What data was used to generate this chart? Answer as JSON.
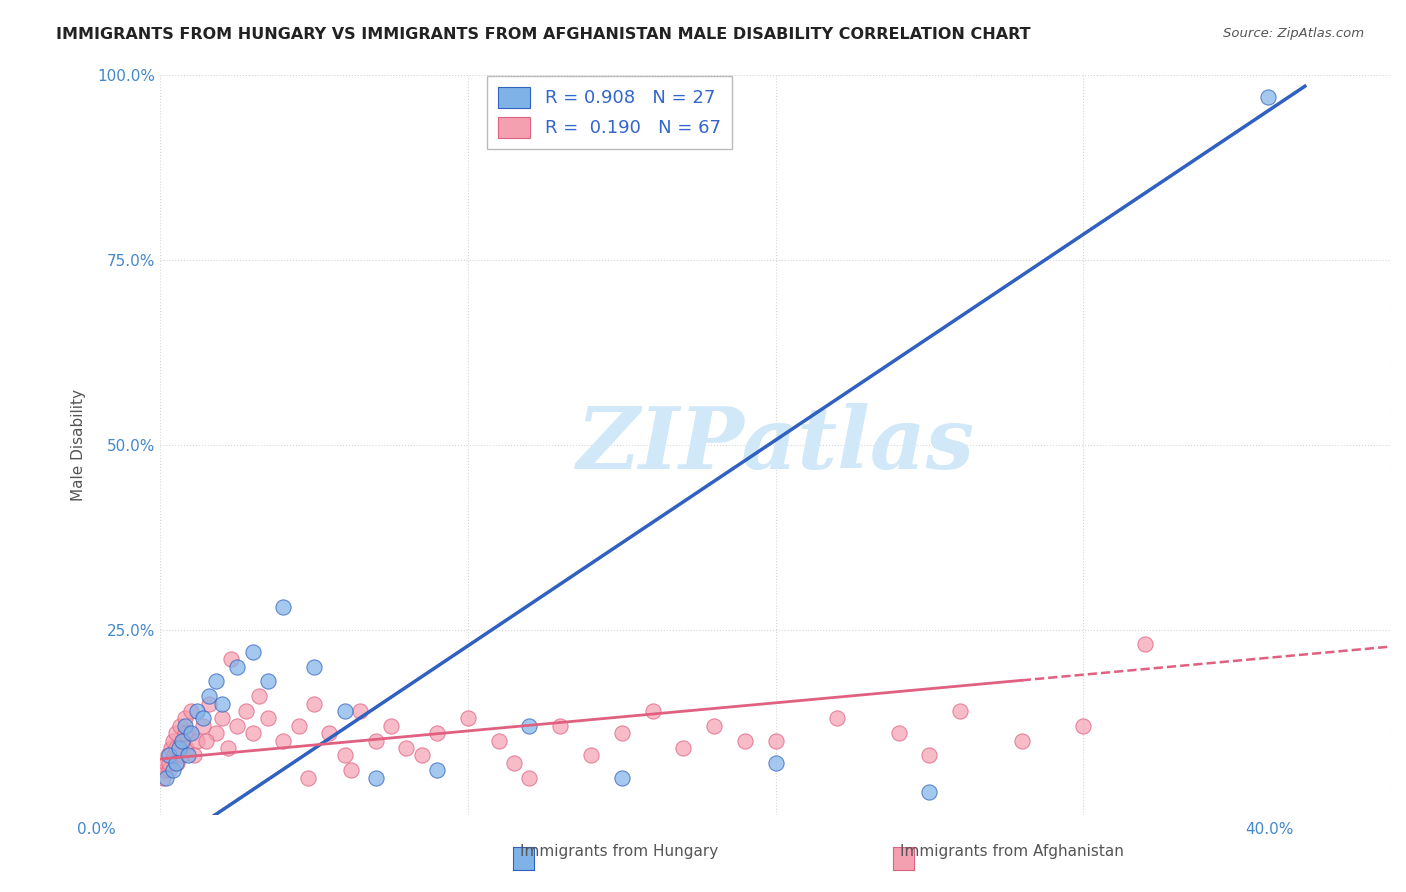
{
  "title": "IMMIGRANTS FROM HUNGARY VS IMMIGRANTS FROM AFGHANISTAN MALE DISABILITY CORRELATION CHART",
  "source": "Source: ZipAtlas.com",
  "ylabel": "Male Disability",
  "x_min": 0.0,
  "x_max": 40.0,
  "y_min": 0.0,
  "y_max": 100.0,
  "yticks": [
    0,
    25,
    50,
    75,
    100
  ],
  "ytick_labels": [
    "",
    "25.0%",
    "50.0%",
    "75.0%",
    "100.0%"
  ],
  "xticks": [
    0,
    10,
    20,
    30,
    40
  ],
  "hungary_R": 0.908,
  "hungary_N": 27,
  "afghanistan_R": 0.19,
  "afghanistan_N": 67,
  "hungary_color": "#7fb3e8",
  "afghanistan_color": "#f4a0b0",
  "hungary_line_color": "#3060c0",
  "afghanistan_line_color": "#e06080",
  "watermark_color": "#d0e8f8",
  "background_color": "#ffffff",
  "grid_color": "#cccccc",
  "hungary_scatter_x": [
    0.2,
    0.3,
    0.4,
    0.5,
    0.6,
    0.7,
    0.8,
    0.9,
    1.0,
    1.2,
    1.4,
    1.6,
    1.8,
    2.0,
    2.5,
    3.0,
    3.5,
    4.0,
    5.0,
    6.0,
    7.0,
    9.0,
    12.0,
    15.0,
    20.0,
    25.0,
    36.0
  ],
  "hungary_scatter_y": [
    5,
    8,
    6,
    7,
    9,
    10,
    12,
    8,
    11,
    14,
    13,
    16,
    18,
    15,
    20,
    22,
    18,
    28,
    20,
    14,
    5,
    6,
    12,
    5,
    7,
    3,
    97
  ],
  "afghanistan_scatter_x": [
    0.1,
    0.15,
    0.2,
    0.25,
    0.3,
    0.35,
    0.4,
    0.45,
    0.5,
    0.55,
    0.6,
    0.65,
    0.7,
    0.75,
    0.8,
    0.85,
    0.9,
    1.0,
    1.2,
    1.4,
    1.6,
    1.8,
    2.0,
    2.2,
    2.5,
    2.8,
    3.0,
    3.5,
    4.0,
    4.5,
    5.0,
    5.5,
    6.0,
    6.5,
    7.0,
    7.5,
    8.0,
    9.0,
    10.0,
    11.0,
    12.0,
    13.0,
    14.0,
    15.0,
    16.0,
    17.0,
    18.0,
    20.0,
    22.0,
    24.0,
    25.0,
    26.0,
    28.0,
    30.0,
    0.3,
    0.5,
    0.8,
    1.1,
    1.5,
    2.3,
    3.2,
    4.8,
    6.2,
    8.5,
    11.5,
    19.0,
    32.0
  ],
  "afghanistan_scatter_y": [
    5,
    6,
    7,
    8,
    6,
    9,
    10,
    8,
    11,
    7,
    9,
    12,
    8,
    10,
    13,
    9,
    11,
    14,
    10,
    12,
    15,
    11,
    13,
    9,
    12,
    14,
    11,
    13,
    10,
    12,
    15,
    11,
    8,
    14,
    10,
    12,
    9,
    11,
    13,
    10,
    5,
    12,
    8,
    11,
    14,
    9,
    12,
    10,
    13,
    11,
    8,
    14,
    10,
    12,
    7,
    9,
    11,
    8,
    10,
    21,
    16,
    5,
    6,
    8,
    7,
    10,
    23
  ],
  "hungary_slope": 2.78,
  "hungary_intercept": -5,
  "af_slope": 0.38,
  "af_intercept": 7.5,
  "af_solid_end": 28
}
